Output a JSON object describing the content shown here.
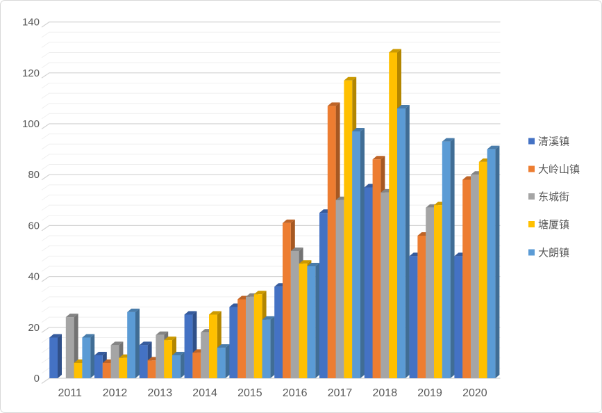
{
  "chart_data": {
    "type": "bar",
    "style": "3d-clustered-column",
    "title": "",
    "xlabel": "",
    "ylabel": "",
    "categories": [
      "2011",
      "2012",
      "2013",
      "2014",
      "2015",
      "2016",
      "2017",
      "2018",
      "2019",
      "2020"
    ],
    "series": [
      {
        "name": "清溪镇",
        "color": "#4472C4",
        "values": [
          16,
          9,
          13,
          25,
          28,
          36,
          65,
          75,
          48,
          48
        ]
      },
      {
        "name": "大岭山镇",
        "color": "#ED7D31",
        "values": [
          0,
          6,
          7,
          10,
          31,
          61,
          107,
          86,
          56,
          78
        ]
      },
      {
        "name": "东城街",
        "color": "#A5A5A5",
        "values": [
          24,
          13,
          17,
          18,
          32,
          50,
          70,
          73,
          67,
          80
        ]
      },
      {
        "name": "塘厦镇",
        "color": "#FFC000",
        "values": [
          6,
          8,
          15,
          25,
          33,
          45,
          117,
          128,
          68,
          85
        ]
      },
      {
        "name": "大朗镇",
        "color": "#5B9BD5",
        "values": [
          16,
          26,
          9,
          12,
          23,
          44,
          97,
          106,
          93,
          90
        ]
      }
    ],
    "ylim": [
      0,
      140
    ],
    "y_major_unit": 20,
    "y_minor_unit": 4,
    "y_tick_labels": [
      "0",
      "20",
      "40",
      "60",
      "80",
      "100",
      "120",
      "140"
    ],
    "grid": "major+minor horizontal",
    "legend_position": "right"
  },
  "legend": {
    "items": [
      {
        "label": "清溪镇",
        "color": "#4472C4"
      },
      {
        "label": "大岭山镇",
        "color": "#ED7D31"
      },
      {
        "label": "东城街",
        "color": "#A5A5A5"
      },
      {
        "label": "塘厦镇",
        "color": "#FFC000"
      },
      {
        "label": "大朗镇",
        "color": "#5B9BD5"
      }
    ]
  },
  "colors": {
    "background": "#FFFFFF",
    "frame_border": "#D9D9D9",
    "gridline_major": "#D2D2D2",
    "gridline_minor": "#EFEFEF",
    "axis_text": "#595959"
  }
}
